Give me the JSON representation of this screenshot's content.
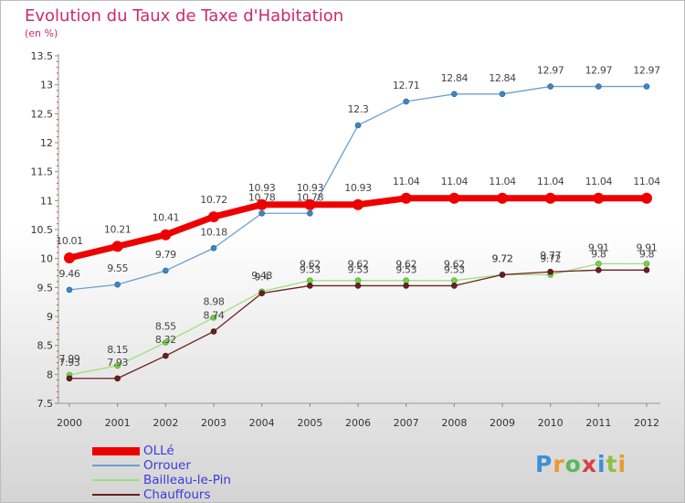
{
  "header": {
    "title": "Evolution du Taux de Taxe d'Habitation",
    "subtitle": "(en %)"
  },
  "logo": {
    "text": "Proxiti"
  },
  "chart_data": {
    "type": "line",
    "title": "Evolution du Taux de Taxe d'Habitation",
    "subtitle": "(en %)",
    "xlabel": "",
    "ylabel": "",
    "ylim": [
      7.5,
      13.5
    ],
    "y_ticks": [
      "7.5",
      "8",
      "8.5",
      "9",
      "9.5",
      "10",
      "10.5",
      "11",
      "11.5",
      "12",
      "12.5",
      "13",
      "13.5"
    ],
    "x": [
      "2000",
      "2001",
      "2002",
      "2003",
      "2004",
      "2005",
      "2006",
      "2007",
      "2008",
      "2009",
      "2010",
      "2011",
      "2012"
    ],
    "legend_position": "bottom-left",
    "series": [
      {
        "name": "OLLé",
        "color": "#ee0000",
        "values": [
          10.01,
          10.21,
          10.41,
          10.72,
          10.93,
          10.93,
          10.93,
          11.04,
          11.04,
          11.04,
          11.04,
          11.04,
          11.04
        ],
        "labels": [
          "10.01",
          "10.21",
          "10.41",
          "10.72",
          "10.93",
          "10.93",
          "10.93",
          "11.04",
          "11.04",
          "11.04",
          "11.04",
          "11.04",
          "11.04"
        ]
      },
      {
        "name": "Orrouer",
        "color": "#6aa0cf",
        "values": [
          9.46,
          9.55,
          9.79,
          10.18,
          10.78,
          10.78,
          12.3,
          12.71,
          12.84,
          12.84,
          12.97,
          12.97,
          12.97
        ],
        "labels": [
          "9.46",
          "9.55",
          "9.79",
          "10.18",
          "10.78",
          "10.78",
          "12.3",
          "12.71",
          "12.84",
          "12.84",
          "12.97",
          "12.97",
          "12.97"
        ]
      },
      {
        "name": "Bailleau-le-Pin",
        "color": "#9ee07a",
        "values": [
          7.99,
          8.15,
          8.55,
          8.98,
          9.43,
          9.62,
          9.62,
          9.62,
          9.62,
          9.72,
          9.72,
          9.91,
          9.91
        ],
        "labels": [
          "7.99",
          "8.15",
          "8.55",
          "8.98",
          "9.43",
          "9.62",
          "9.62",
          "9.62",
          "9.62",
          "9.72",
          "9.72",
          "9.91",
          "9.91"
        ]
      },
      {
        "name": "Chauffours",
        "color": "#6b1f1f",
        "values": [
          7.93,
          7.93,
          8.32,
          8.74,
          9.4,
          9.53,
          9.53,
          9.53,
          9.53,
          9.72,
          9.77,
          9.8,
          9.8
        ],
        "labels": [
          "7.93",
          "7.93",
          "8.32",
          "8.74",
          "9.4",
          "9.53",
          "9.53",
          "9.53",
          "9.53",
          "9.72",
          "9.77",
          "9.8",
          "9.8"
        ]
      }
    ]
  }
}
